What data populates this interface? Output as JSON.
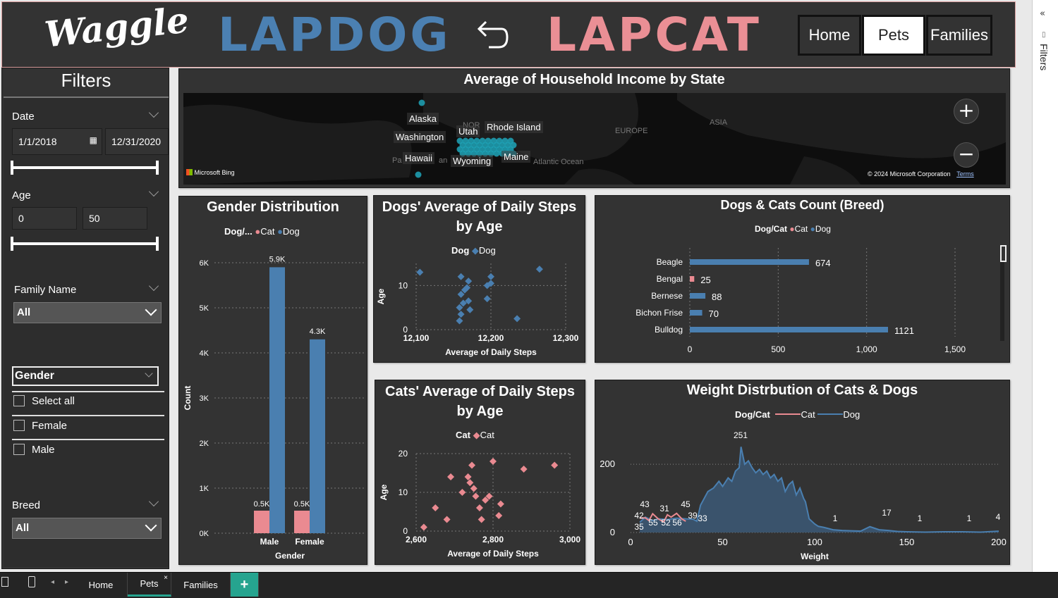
{
  "header": {
    "logo": "Waggle",
    "brand_left": "LAPDOG",
    "brand_right": "LAPCAT",
    "nav": [
      "Home",
      "Pets",
      "Families"
    ],
    "active_nav": "Pets"
  },
  "filter_pane": {
    "label": "Filters",
    "collapse_icon": "double-chevron-left-icon"
  },
  "filters": {
    "title": "Filters",
    "date": {
      "label": "Date",
      "start": "1/1/2018",
      "end": "12/31/2020"
    },
    "age": {
      "label": "Age",
      "min": "0",
      "max": "50"
    },
    "family_name": {
      "label": "Family Name",
      "value": "All"
    },
    "gender": {
      "label": "Gender",
      "options": [
        "Select all",
        "Female",
        "Male"
      ]
    },
    "breed": {
      "label": "Breed",
      "value": "All"
    }
  },
  "map": {
    "title": "Average of Household Income by State",
    "labels": [
      "Alaska",
      "Washington",
      "Hawaii",
      "Utah",
      "Rhode Island",
      "Wyoming",
      "Maine"
    ],
    "faint_labels": [
      "EUROPE",
      "ASIA",
      "Atlantic Ocean",
      "NOR",
      "Pa",
      "an"
    ],
    "attribution": "Microsoft Bing",
    "copyright": "© 2024 Microsoft Corporation",
    "terms": "Terms"
  },
  "colors": {
    "cat": "#ea8a91",
    "dog": "#4a7fb0",
    "panel": "#333333",
    "accent": "#26a48f"
  },
  "gender_chart": {
    "title": "Gender Distribution",
    "legend_title": "Dog/...",
    "legend": [
      "Cat",
      "Dog"
    ],
    "ylabel": "Count",
    "xlabel": "Gender",
    "yticks": [
      "0K",
      "1K",
      "2K",
      "3K",
      "4K",
      "5K",
      "6K"
    ]
  },
  "dog_steps_chart": {
    "title_line1": "Dogs' Average of Daily Steps",
    "title_line2": "by Age",
    "legend_title": "Dog",
    "legend": [
      "Dog"
    ],
    "ylabel": "Age",
    "xlabel": "Average of Daily Steps",
    "xticks": [
      "12,100",
      "12,200",
      "12,300"
    ],
    "yticks": [
      "0",
      "10"
    ]
  },
  "cat_steps_chart": {
    "title_line1": "Cats' Average of Daily Steps",
    "title_line2": "by Age",
    "legend_title": "Cat",
    "legend": [
      "Cat"
    ],
    "ylabel": "Age",
    "xlabel": "Average of Daily Steps",
    "xticks": [
      "2,600",
      "2,800",
      "3,000"
    ],
    "yticks": [
      "0",
      "10",
      "20"
    ]
  },
  "breed_chart": {
    "title": "Dogs & Cats Count (Breed)",
    "legend_title": "Dog/Cat",
    "legend": [
      "Cat",
      "Dog"
    ],
    "xticks": [
      "0",
      "500",
      "1,000",
      "1,500"
    ]
  },
  "weight_chart": {
    "title": "Weight Distrbution of Cats & Dogs",
    "legend_title": "Dog/Cat",
    "legend": [
      "Cat",
      "Dog"
    ],
    "xlabel": "Weight",
    "xticks": [
      "0",
      "50",
      "100",
      "150",
      "200"
    ],
    "yticks": [
      "0",
      "200"
    ]
  },
  "chart_data": [
    {
      "type": "bar",
      "title": "Gender Distribution",
      "xlabel": "Gender",
      "ylabel": "Count",
      "categories": [
        "Male",
        "Female"
      ],
      "series": [
        {
          "name": "Cat",
          "values": [
            0.5,
            0.5
          ],
          "labels": [
            "0.5K",
            "0.5K"
          ]
        },
        {
          "name": "Dog",
          "values": [
            5.9,
            4.3
          ],
          "labels": [
            "5.9K",
            "4.3K"
          ]
        }
      ],
      "ylim": [
        0,
        6
      ]
    },
    {
      "type": "scatter",
      "title": "Dogs' Average of Daily Steps by Age",
      "xlabel": "Average of Daily Steps",
      "ylabel": "Age",
      "xlim": [
        12100,
        12300
      ],
      "ylim": [
        0,
        15
      ],
      "series": [
        {
          "name": "Dog",
          "points": [
            [
              12105,
              13
            ],
            [
              12160,
              12
            ],
            [
              12165,
              9
            ],
            [
              12160,
              8
            ],
            [
              12170,
              11
            ],
            [
              12168,
              9.5
            ],
            [
              12163,
              6
            ],
            [
              12170,
              6.5
            ],
            [
              12158,
              5
            ],
            [
              12172,
              4.5
            ],
            [
              12160,
              3.5
            ],
            [
              12158,
              2
            ],
            [
              12195,
              10
            ],
            [
              12200,
              12
            ],
            [
              12200,
              10.5
            ],
            [
              12195,
              7
            ],
            [
              12235,
              2.5
            ],
            [
              12265,
              13.7
            ]
          ]
        }
      ]
    },
    {
      "type": "scatter",
      "title": "Cats' Average of Daily Steps by Age",
      "xlabel": "Average of Daily Steps",
      "ylabel": "Age",
      "xlim": [
        2600,
        3000
      ],
      "ylim": [
        0,
        20
      ],
      "series": [
        {
          "name": "Cat",
          "points": [
            [
              2620,
              1
            ],
            [
              2650,
              6
            ],
            [
              2680,
              3
            ],
            [
              2690,
              14
            ],
            [
              2720,
              10
            ],
            [
              2735,
              14
            ],
            [
              2740,
              12.5
            ],
            [
              2745,
              17
            ],
            [
              2750,
              11
            ],
            [
              2755,
              9
            ],
            [
              2765,
              6
            ],
            [
              2770,
              3
            ],
            [
              2780,
              8
            ],
            [
              2790,
              9
            ],
            [
              2800,
              18
            ],
            [
              2815,
              4
            ],
            [
              2820,
              7
            ],
            [
              2880,
              16
            ],
            [
              2960,
              17
            ]
          ]
        }
      ]
    },
    {
      "type": "bar",
      "title": "Dogs & Cats Count (Breed)",
      "orientation": "horizontal",
      "categories": [
        "Beagle",
        "Bengal",
        "Bernese",
        "Bichon Frise",
        "Bulldog"
      ],
      "series": [
        {
          "name": "Cat",
          "values": [
            0,
            25,
            0,
            0,
            0
          ]
        },
        {
          "name": "Dog",
          "values": [
            674,
            0,
            88,
            70,
            1121
          ]
        }
      ],
      "data_labels": [
        "674",
        "25",
        "88",
        "70",
        "1121"
      ],
      "xlim": [
        0,
        1500
      ]
    },
    {
      "type": "area",
      "title": "Weight Distrbution of Cats & Dogs",
      "xlabel": "Weight",
      "xlim": [
        0,
        200
      ],
      "ylim": [
        0,
        260
      ],
      "series": [
        {
          "name": "Dog",
          "x": [
            5,
            8,
            12,
            15,
            20,
            25,
            30,
            34,
            36,
            38,
            40,
            42,
            45,
            48,
            50,
            53,
            55,
            57,
            59,
            60,
            62,
            64,
            66,
            68,
            70,
            72,
            74,
            76,
            78,
            80,
            82,
            84,
            86,
            88,
            90,
            92,
            94,
            95,
            97,
            100,
            102,
            105,
            110,
            115,
            120,
            125,
            130,
            135,
            140,
            145,
            150,
            160,
            170,
            180,
            190,
            200
          ],
          "y": [
            30,
            45,
            35,
            40,
            38,
            42,
            40,
            39,
            33,
            80,
            100,
            120,
            130,
            150,
            135,
            160,
            150,
            180,
            190,
            251,
            200,
            210,
            190,
            175,
            185,
            170,
            180,
            160,
            170,
            150,
            160,
            120,
            140,
            150,
            110,
            130,
            100,
            90,
            40,
            25,
            18,
            15,
            8,
            6,
            5,
            4,
            17,
            8,
            6,
            3,
            2,
            1,
            2,
            2,
            1,
            4
          ]
        },
        {
          "name": "Cat",
          "x": [
            5,
            8,
            10,
            12,
            15,
            18,
            20,
            22,
            25,
            28,
            30
          ],
          "y": [
            42,
            43,
            35,
            55,
            40,
            31,
            52,
            45,
            56,
            39,
            33
          ]
        }
      ],
      "point_labels": [
        "251",
        "43",
        "42",
        "35",
        "31",
        "55",
        "52",
        "45",
        "56",
        "39",
        "33",
        "1",
        "17",
        "1",
        "1",
        "4"
      ]
    }
  ],
  "bottom_bar": {
    "tabs": [
      "Home",
      "Pets",
      "Families"
    ],
    "active": "Pets",
    "add": "+"
  }
}
